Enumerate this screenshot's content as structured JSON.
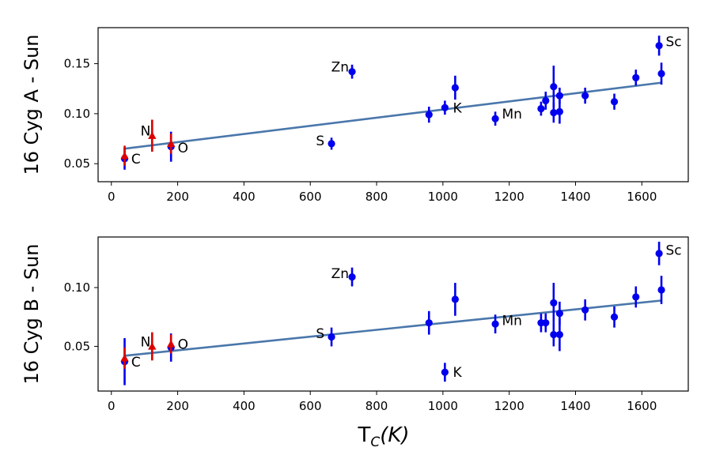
{
  "chart_data": [
    {
      "type": "scatter",
      "panel": "top",
      "ylabel": "16 Cyg A - Sun",
      "xlim": [
        -40,
        1740
      ],
      "ylim": [
        0.032,
        0.186
      ],
      "xticks": [
        0,
        200,
        400,
        600,
        800,
        1000,
        1200,
        1400,
        1600
      ],
      "xtick_labels": [
        "0",
        "200",
        "400",
        "600",
        "800",
        "1000",
        "1200",
        "1400",
        "1600"
      ],
      "yticks": [
        0.05,
        0.1,
        0.15
      ],
      "ytick_labels": [
        "0.05",
        "0.10",
        "0.15"
      ],
      "fit": {
        "x": [
          40,
          1660
        ],
        "y": [
          0.065,
          0.131
        ],
        "color": "#4a77ab"
      },
      "points": [
        {
          "x": 40,
          "y": 0.055,
          "err": 0.011,
          "marker": "circle",
          "color": "#0000ee"
        },
        {
          "x": 40,
          "y": 0.058,
          "err": 0.01,
          "marker": "triangle",
          "color": "#dd0000"
        },
        {
          "x": 123,
          "y": 0.078,
          "err": 0.016,
          "marker": "triangle",
          "color": "#dd0000"
        },
        {
          "x": 180,
          "y": 0.067,
          "err": 0.015,
          "marker": "circle",
          "color": "#0000ee"
        },
        {
          "x": 180,
          "y": 0.07,
          "err": 0.01,
          "marker": "triangle",
          "color": "#dd0000"
        },
        {
          "x": 664,
          "y": 0.07,
          "err": 0.006,
          "marker": "circle",
          "color": "#0000ee"
        },
        {
          "x": 726,
          "y": 0.142,
          "err": 0.007,
          "marker": "circle",
          "color": "#0000ee"
        },
        {
          "x": 958,
          "y": 0.099,
          "err": 0.008,
          "marker": "circle",
          "color": "#0000ee"
        },
        {
          "x": 1006,
          "y": 0.106,
          "err": 0.007,
          "marker": "circle",
          "color": "#0000ee"
        },
        {
          "x": 1037,
          "y": 0.126,
          "err": 0.012,
          "marker": "circle",
          "color": "#0000ee"
        },
        {
          "x": 1158,
          "y": 0.095,
          "err": 0.007,
          "marker": "circle",
          "color": "#0000ee"
        },
        {
          "x": 1296,
          "y": 0.105,
          "err": 0.007,
          "marker": "circle",
          "color": "#0000ee"
        },
        {
          "x": 1310,
          "y": 0.113,
          "err": 0.009,
          "marker": "circle",
          "color": "#0000ee"
        },
        {
          "x": 1334,
          "y": 0.127,
          "err": 0.021,
          "marker": "circle",
          "color": "#0000ee"
        },
        {
          "x": 1334,
          "y": 0.101,
          "err": 0.01,
          "marker": "circle",
          "color": "#0000ee"
        },
        {
          "x": 1352,
          "y": 0.102,
          "err": 0.012,
          "marker": "circle",
          "color": "#0000ee"
        },
        {
          "x": 1352,
          "y": 0.118,
          "err": 0.008,
          "marker": "circle",
          "color": "#0000ee"
        },
        {
          "x": 1429,
          "y": 0.118,
          "err": 0.008,
          "marker": "circle",
          "color": "#0000ee"
        },
        {
          "x": 1517,
          "y": 0.112,
          "err": 0.008,
          "marker": "circle",
          "color": "#0000ee"
        },
        {
          "x": 1582,
          "y": 0.136,
          "err": 0.008,
          "marker": "circle",
          "color": "#0000ee"
        },
        {
          "x": 1652,
          "y": 0.168,
          "err": 0.01,
          "marker": "circle",
          "color": "#0000ee"
        },
        {
          "x": 1659,
          "y": 0.14,
          "err": 0.011,
          "marker": "circle",
          "color": "#0000ee"
        }
      ],
      "annotations": [
        {
          "text": "C",
          "x": 60,
          "y": 0.055
        },
        {
          "text": "N",
          "x": 88,
          "y": 0.083
        },
        {
          "text": "O",
          "x": 200,
          "y": 0.066
        },
        {
          "text": "S",
          "x": 617,
          "y": 0.073
        },
        {
          "text": "Zn",
          "x": 663,
          "y": 0.147
        },
        {
          "text": "K",
          "x": 1030,
          "y": 0.106
        },
        {
          "text": "Mn",
          "x": 1178,
          "y": 0.1
        },
        {
          "text": "Sc",
          "x": 1672,
          "y": 0.172
        }
      ]
    },
    {
      "type": "scatter",
      "panel": "bottom",
      "ylabel": "16 Cyg B - Sun",
      "xlabel": "T",
      "xlabel_sub": "C",
      "xlabel_unit": "(K)",
      "xlim": [
        -40,
        1740
      ],
      "ylim": [
        0.012,
        0.143
      ],
      "xticks": [
        0,
        200,
        400,
        600,
        800,
        1000,
        1200,
        1400,
        1600
      ],
      "xtick_labels": [
        "0",
        "200",
        "400",
        "600",
        "800",
        "1000",
        "1200",
        "1400",
        "1600"
      ],
      "yticks": [
        0.05,
        0.1
      ],
      "ytick_labels": [
        "0.05",
        "0.10"
      ],
      "fit": {
        "x": [
          40,
          1660
        ],
        "y": [
          0.042,
          0.089
        ],
        "color": "#4a77ab"
      },
      "points": [
        {
          "x": 40,
          "y": 0.037,
          "err": 0.02,
          "marker": "circle",
          "color": "#0000ee"
        },
        {
          "x": 40,
          "y": 0.04,
          "err": 0.009,
          "marker": "triangle",
          "color": "#dd0000"
        },
        {
          "x": 123,
          "y": 0.05,
          "err": 0.012,
          "marker": "triangle",
          "color": "#dd0000"
        },
        {
          "x": 180,
          "y": 0.049,
          "err": 0.012,
          "marker": "circle",
          "color": "#0000ee"
        },
        {
          "x": 180,
          "y": 0.052,
          "err": 0.008,
          "marker": "triangle",
          "color": "#dd0000"
        },
        {
          "x": 664,
          "y": 0.058,
          "err": 0.008,
          "marker": "circle",
          "color": "#0000ee"
        },
        {
          "x": 726,
          "y": 0.109,
          "err": 0.008,
          "marker": "circle",
          "color": "#0000ee"
        },
        {
          "x": 958,
          "y": 0.07,
          "err": 0.01,
          "marker": "circle",
          "color": "#0000ee"
        },
        {
          "x": 1006,
          "y": 0.028,
          "err": 0.008,
          "marker": "circle",
          "color": "#0000ee"
        },
        {
          "x": 1037,
          "y": 0.09,
          "err": 0.014,
          "marker": "circle",
          "color": "#0000ee"
        },
        {
          "x": 1158,
          "y": 0.069,
          "err": 0.008,
          "marker": "circle",
          "color": "#0000ee"
        },
        {
          "x": 1296,
          "y": 0.07,
          "err": 0.008,
          "marker": "circle",
          "color": "#0000ee"
        },
        {
          "x": 1310,
          "y": 0.07,
          "err": 0.008,
          "marker": "circle",
          "color": "#0000ee"
        },
        {
          "x": 1334,
          "y": 0.087,
          "err": 0.017,
          "marker": "circle",
          "color": "#0000ee"
        },
        {
          "x": 1334,
          "y": 0.06,
          "err": 0.01,
          "marker": "circle",
          "color": "#0000ee"
        },
        {
          "x": 1352,
          "y": 0.06,
          "err": 0.014,
          "marker": "circle",
          "color": "#0000ee"
        },
        {
          "x": 1352,
          "y": 0.078,
          "err": 0.01,
          "marker": "circle",
          "color": "#0000ee"
        },
        {
          "x": 1429,
          "y": 0.081,
          "err": 0.009,
          "marker": "circle",
          "color": "#0000ee"
        },
        {
          "x": 1517,
          "y": 0.075,
          "err": 0.009,
          "marker": "circle",
          "color": "#0000ee"
        },
        {
          "x": 1582,
          "y": 0.092,
          "err": 0.009,
          "marker": "circle",
          "color": "#0000ee"
        },
        {
          "x": 1652,
          "y": 0.129,
          "err": 0.01,
          "marker": "circle",
          "color": "#0000ee"
        },
        {
          "x": 1659,
          "y": 0.098,
          "err": 0.012,
          "marker": "circle",
          "color": "#0000ee"
        }
      ],
      "annotations": [
        {
          "text": "C",
          "x": 60,
          "y": 0.037
        },
        {
          "text": "N",
          "x": 88,
          "y": 0.054
        },
        {
          "text": "O",
          "x": 200,
          "y": 0.052
        },
        {
          "text": "S",
          "x": 617,
          "y": 0.061
        },
        {
          "text": "Zn",
          "x": 663,
          "y": 0.112
        },
        {
          "text": "K",
          "x": 1030,
          "y": 0.028
        },
        {
          "text": "Mn",
          "x": 1178,
          "y": 0.072
        },
        {
          "text": "Sc",
          "x": 1672,
          "y": 0.132
        }
      ]
    }
  ]
}
